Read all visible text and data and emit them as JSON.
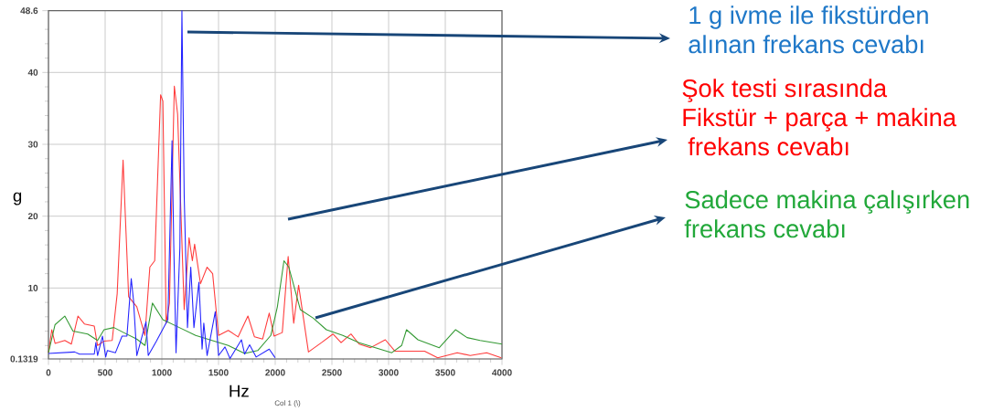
{
  "chart_data": {
    "type": "line",
    "xlabel": "Hz",
    "ylabel": "g",
    "xlim": [
      0,
      4000
    ],
    "ylim": [
      0.1319,
      48.6
    ],
    "xticks": [
      0,
      {
        "value": 100,
        "label": null
      },
      {
        "value": 200,
        "label": null
      },
      {
        "value": 300,
        "label": null
      },
      {
        "value": 400,
        "label": null
      },
      500,
      {
        "value": 600,
        "label": null
      },
      {
        "value": 700,
        "label": null
      },
      {
        "value": 800,
        "label": null
      },
      {
        "value": 900,
        "label": null
      },
      1000,
      {
        "value": 1100,
        "label": null
      },
      {
        "value": 1200,
        "label": null
      },
      {
        "value": 1300,
        "label": null
      },
      {
        "value": 1400,
        "label": null
      },
      1500,
      {
        "value": 1600,
        "label": null
      },
      {
        "value": 1700,
        "label": null
      },
      {
        "value": 1800,
        "label": null
      },
      {
        "value": 1900,
        "label": null
      },
      2000,
      {
        "value": 2100,
        "label": null
      },
      {
        "value": 2200,
        "label": null
      },
      {
        "value": 2300,
        "label": null
      },
      {
        "value": 2400,
        "label": null
      },
      2500,
      {
        "value": 2600,
        "label": null
      },
      {
        "value": 2700,
        "label": null
      },
      {
        "value": 2800,
        "label": null
      },
      {
        "value": 2900,
        "label": null
      },
      3000,
      {
        "value": 3100,
        "label": null
      },
      {
        "value": 3200,
        "label": null
      },
      {
        "value": 3300,
        "label": null
      },
      {
        "value": 3400,
        "label": null
      },
      3500,
      {
        "value": 3600,
        "label": null
      },
      {
        "value": 3700,
        "label": null
      },
      {
        "value": 3800,
        "label": null
      },
      {
        "value": 3900,
        "label": null
      },
      4000
    ],
    "yticks": [
      0.1319,
      {
        "value": 2,
        "label": null
      },
      {
        "value": 4,
        "label": null
      },
      {
        "value": 6,
        "label": null
      },
      {
        "value": 8,
        "label": null
      },
      10,
      {
        "value": 12,
        "label": null
      },
      {
        "value": 14,
        "label": null
      },
      {
        "value": 16,
        "label": null
      },
      {
        "value": 18,
        "label": null
      },
      20,
      {
        "value": 22,
        "label": null
      },
      {
        "value": 24,
        "label": null
      },
      {
        "value": 26,
        "label": null
      },
      {
        "value": 28,
        "label": null
      },
      30,
      {
        "value": 32,
        "label": null
      },
      {
        "value": 34,
        "label": null
      },
      {
        "value": 36,
        "label": null
      },
      {
        "value": 38,
        "label": null
      },
      40,
      {
        "value": 42,
        "label": null
      },
      {
        "value": 44,
        "label": null
      },
      {
        "value": 46,
        "label": null
      },
      48.6
    ],
    "grid": true,
    "marker": "none",
    "line_style": "solid",
    "series": [
      {
        "color": "#ff3b3b",
        "x": [
          0,
          29,
          58,
          144,
          202,
          260,
          317,
          404,
          433,
          490,
          562,
          606,
          658,
          707,
          779,
          851,
          894,
          937,
          989,
          1009,
          1038,
          1067,
          1110,
          1139,
          1197,
          1240,
          1269,
          1289,
          1341,
          1399,
          1448,
          1500,
          1586,
          1673,
          1759,
          1817,
          1889,
          1947,
          1990,
          2062,
          2114,
          2163,
          2206,
          2293,
          2408,
          2509,
          2581,
          2668,
          2740,
          2841,
          2971,
          3057,
          3317,
          3433,
          3605,
          3720,
          3865,
          3994
        ],
        "values": [
          1.0,
          4.2,
          2.3,
          2.7,
          2.2,
          6.1,
          5.0,
          4.7,
          2.0,
          2.6,
          2.7,
          9.2,
          27.8,
          8.8,
          7.4,
          3.4,
          12.9,
          13.8,
          36.9,
          36.0,
          5.1,
          7.9,
          38.1,
          34.2,
          7.0,
          17.0,
          13.8,
          16.1,
          10.6,
          12.9,
          12.0,
          3.4,
          4.1,
          3.2,
          6.1,
          3.2,
          2.9,
          6.5,
          3.3,
          3.8,
          14.4,
          5.1,
          10.4,
          1.1,
          2.4,
          3.6,
          2.4,
          3.6,
          2.2,
          1.7,
          2.8,
          1.2,
          1.2,
          0.3,
          1.0,
          0.6,
          1.0,
          0.3
        ]
      },
      {
        "color": "#339933",
        "x": [
          0,
          58,
          144,
          216,
          346,
          433,
          490,
          577,
          663,
          779,
          851,
          917,
          1009,
          1154,
          1298,
          1442,
          1586,
          1730,
          1846,
          1961,
          2019,
          2077,
          2120,
          2221,
          2336,
          2451,
          2596,
          2740,
          2884,
          3028,
          3115,
          3158,
          3259,
          3447,
          3591,
          3692,
          3807,
          4000
        ],
        "values": [
          1.0,
          4.9,
          6.1,
          4.0,
          3.6,
          2.7,
          4.2,
          4.5,
          3.8,
          2.9,
          2.0,
          7.9,
          5.6,
          4.5,
          3.4,
          2.7,
          2.0,
          0.9,
          1.3,
          3.4,
          7.4,
          13.8,
          12.9,
          7.0,
          5.8,
          4.2,
          3.4,
          2.4,
          1.7,
          1.0,
          2.0,
          4.2,
          2.8,
          1.7,
          4.2,
          3.1,
          2.7,
          2.2
        ]
      },
      {
        "color": "#2323ff",
        "x": [
          0,
          231,
          274,
          404,
          418,
          433,
          476,
          505,
          519,
          591,
          649,
          692,
          730,
          750,
          779,
          860,
          880,
          952,
          1053,
          1090,
          1105,
          1125,
          1159,
          1177,
          1197,
          1226,
          1255,
          1283,
          1327,
          1355,
          1370,
          1399,
          1471,
          1500,
          1557,
          1601,
          1702,
          1730,
          1774,
          1832,
          1947,
          1999
        ],
        "values": [
          0.9,
          1.1,
          0.8,
          0.8,
          2.4,
          0.6,
          3.3,
          0.4,
          1.3,
          1.0,
          3.3,
          3.3,
          11.3,
          8.3,
          0.6,
          5.3,
          0.6,
          2.6,
          5.6,
          30.5,
          16.0,
          1.0,
          15.6,
          48.6,
          22.9,
          4.5,
          12.9,
          4.5,
          10.8,
          1.5,
          5.1,
          0.6,
          6.7,
          0.6,
          1.8,
          0.2,
          2.8,
          0.8,
          2.1,
          0.4,
          1.5,
          0.3
        ]
      }
    ],
    "annotations": [
      "1 g ivme ile fikstürden",
      "alınan frekans cevabı",
      "Şok testi sırasında",
      "Fikstür + parça + makina",
      "frekans cevabı",
      "Sadece makina çalışırken",
      "frekans cevabı",
      "Col 1 (\\)"
    ]
  }
}
